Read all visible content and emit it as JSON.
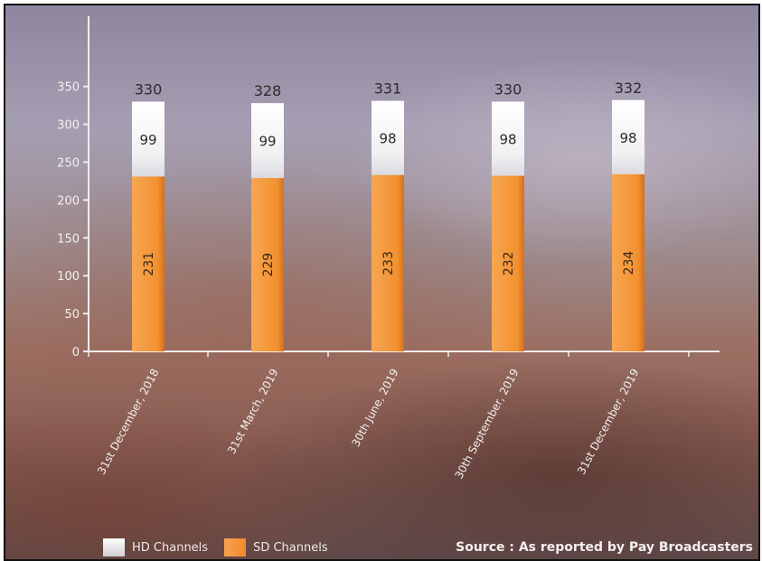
{
  "chart_data": {
    "type": "bar",
    "stacked": true,
    "categories": [
      "31st December, 2018",
      "31st March, 2019",
      "30th June, 2019",
      "30th September, 2019",
      "31st December, 2019"
    ],
    "series": [
      {
        "name": "SD Channels",
        "values": [
          231,
          229,
          233,
          232,
          234
        ]
      },
      {
        "name": "HD Channels",
        "values": [
          99,
          99,
          98,
          98,
          98
        ]
      }
    ],
    "totals": [
      330,
      328,
      331,
      330,
      332
    ],
    "yticks": [
      0,
      50,
      100,
      150,
      200,
      250,
      300,
      350
    ],
    "ylim": [
      0,
      380
    ],
    "grid": false,
    "legend": "bottom-left",
    "colors": {
      "SD Channels": "#f39437",
      "HD Channels": "#f2f2f4"
    }
  },
  "legend": {
    "hd_label": "HD Channels",
    "sd_label": "SD Channels"
  },
  "source_note": "Source : As reported by Pay Broadcasters"
}
